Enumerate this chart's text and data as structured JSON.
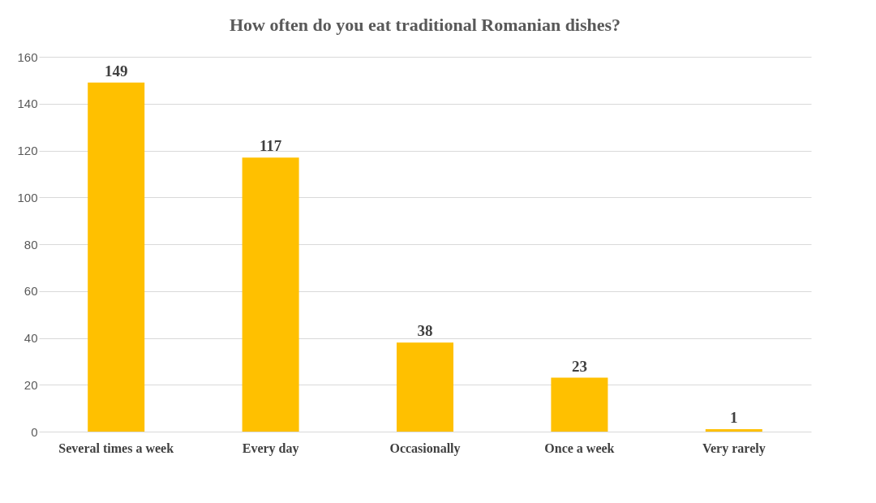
{
  "chart_data": {
    "type": "bar",
    "title": "How often do you eat traditional Romanian dishes?",
    "categories": [
      "Several times a week",
      "Every day",
      "Occasionally",
      "Once a week",
      "Very rarely"
    ],
    "values": [
      149,
      117,
      38,
      23,
      1
    ],
    "color": "#ffc000",
    "ylim": [
      0,
      160
    ],
    "yticks": [
      0,
      20,
      40,
      60,
      80,
      100,
      120,
      140,
      160
    ],
    "grid": "y",
    "data_labels": true
  }
}
